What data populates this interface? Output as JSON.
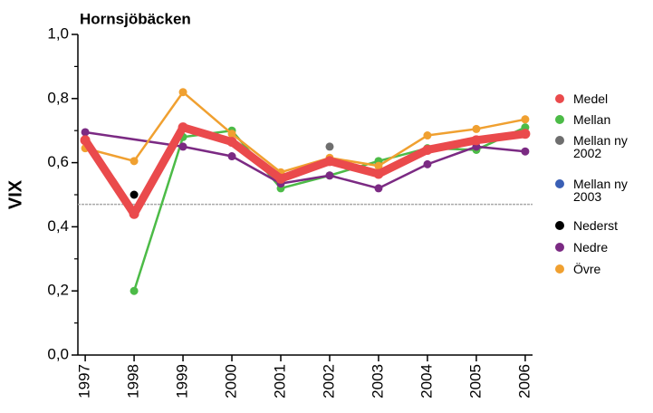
{
  "chart_data": {
    "type": "line",
    "title": "Hornsjöbäcken",
    "y_label": "VIX",
    "xlim": [
      1996.85,
      2006.15
    ],
    "xticks": [
      1997,
      1998,
      1999,
      2000,
      2001,
      2002,
      2003,
      2004,
      2005,
      2006
    ],
    "ylim": [
      0,
      1
    ],
    "yticks": [
      {
        "value": 0,
        "label": "0,0"
      },
      {
        "value": 0.2,
        "label": "0,2"
      },
      {
        "value": 0.4,
        "label": "0,4"
      },
      {
        "value": 0.6,
        "label": "0,6"
      },
      {
        "value": 0.8,
        "label": "0,8"
      },
      {
        "value": 1,
        "label": "1,0"
      }
    ],
    "yminor_ticks": [
      0.1,
      0.3,
      0.5,
      0.7,
      0.9
    ],
    "reference_line": 0.47,
    "legend": "right",
    "series": [
      {
        "name": "Medel",
        "color": "#ea4a4c",
        "x": [
          1997,
          1998,
          1999,
          2000,
          2001,
          2002,
          2003,
          2004,
          2005,
          2006
        ],
        "values": [
          0.67,
          0.44,
          0.71,
          0.665,
          0.55,
          0.605,
          0.565,
          0.64,
          0.67,
          0.69
        ]
      },
      {
        "name": "Mellan",
        "color": "#4cbb47",
        "x": [
          1998,
          1999,
          2000,
          2001,
          2002,
          2003,
          2004,
          2005,
          2006
        ],
        "values": [
          0.2,
          0.68,
          0.7,
          0.52,
          0.56,
          0.605,
          0.645,
          0.64,
          0.71
        ]
      },
      {
        "name": "Mellan ny 2002",
        "color": "#6e6e6e",
        "x": [
          2002
        ],
        "values": [
          0.65
        ]
      },
      {
        "name": "Mellan ny 2003",
        "color": "#3a5fb5",
        "x": [
          2003
        ],
        "values": [
          0.6
        ]
      },
      {
        "name": "Nederst",
        "color": "#000000",
        "x": [
          1998
        ],
        "values": [
          0.5
        ]
      },
      {
        "name": "Nedre",
        "color": "#7b2a83",
        "x": [
          1997,
          1999,
          2000,
          2001,
          2002,
          2003,
          2004,
          2005,
          2006
        ],
        "values": [
          0.695,
          0.65,
          0.62,
          0.535,
          0.56,
          0.52,
          0.595,
          0.65,
          0.635
        ]
      },
      {
        "name": "Övre",
        "color": "#f0a030",
        "x": [
          1997,
          1998,
          1999,
          2000,
          2001,
          2002,
          2003,
          2004,
          2005,
          2006
        ],
        "values": [
          0.645,
          0.605,
          0.82,
          0.69,
          0.57,
          0.615,
          0.59,
          0.685,
          0.705,
          0.735
        ]
      }
    ]
  }
}
